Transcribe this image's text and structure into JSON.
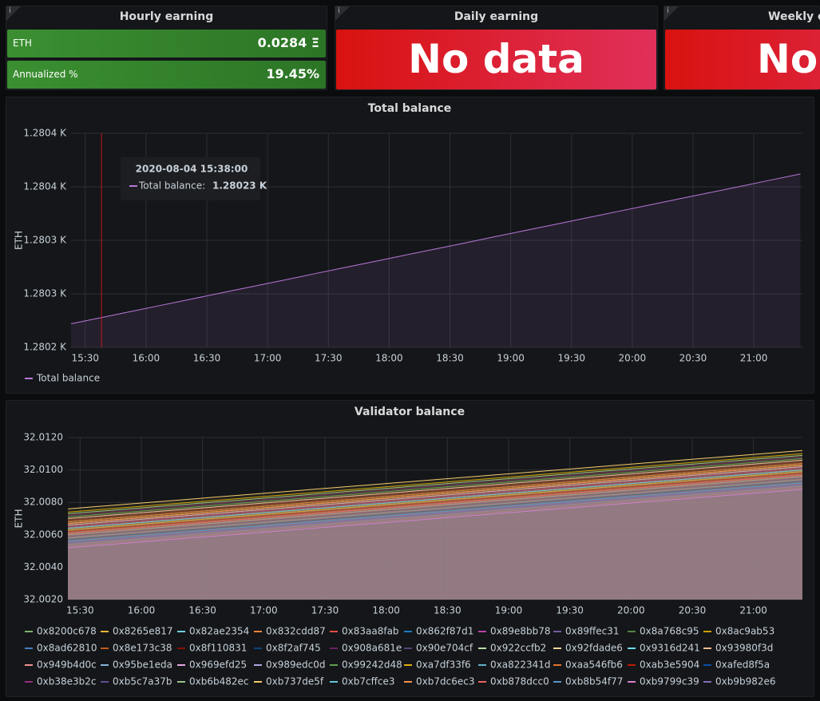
{
  "stat_panels": [
    {
      "title": "Hourly earning",
      "rows": [
        {
          "label": "ETH",
          "value": "0.0284 Ξ"
        },
        {
          "label": "Annualized %",
          "value": "19.45%"
        }
      ]
    },
    {
      "title": "Daily earning",
      "value": "No data"
    },
    {
      "title": "Weekly earning",
      "value": "No data"
    }
  ],
  "chart_data": [
    {
      "type": "line",
      "title": "Total balance",
      "y_label": "ETH",
      "x": [
        "15:23",
        "15:38",
        "15:53",
        "16:08",
        "16:23",
        "16:38",
        "16:53",
        "17:08",
        "17:23",
        "17:38",
        "17:53",
        "18:08",
        "18:23",
        "18:38",
        "18:53",
        "19:08",
        "19:23",
        "19:38",
        "19:53",
        "20:08",
        "20:23",
        "20:38",
        "20:53",
        "21:08",
        "21:23"
      ],
      "series": [
        {
          "name": "Total balance",
          "color": "#b877d9",
          "values": [
            1280.222,
            1280.2278,
            1280.2337,
            1280.2395,
            1280.2453,
            1280.2512,
            1280.257,
            1280.2628,
            1280.2687,
            1280.2745,
            1280.2803,
            1280.2862,
            1280.292,
            1280.2978,
            1280.3037,
            1280.3095,
            1280.3153,
            1280.3212,
            1280.327,
            1280.3328,
            1280.3387,
            1280.3445,
            1280.3503,
            1280.3562,
            1280.362
          ]
        }
      ],
      "xlim": [
        "15:23",
        "21:24"
      ],
      "xticks": [
        "15:30",
        "16:00",
        "16:30",
        "17:00",
        "17:30",
        "18:00",
        "18:30",
        "19:00",
        "19:30",
        "20:00",
        "20:30",
        "21:00"
      ],
      "ylim": [
        1280.2,
        1280.4
      ],
      "yticks": [
        {
          "value": 1280.2,
          "label": "1.2802 K"
        },
        {
          "value": 1280.25,
          "label": "1.2803 K"
        },
        {
          "value": 1280.3,
          "label": "1.2803 K"
        },
        {
          "value": 1280.35,
          "label": "1.2804 K"
        },
        {
          "value": 1280.4,
          "label": "1.2804 K"
        }
      ],
      "grid": true,
      "legend": "bottom-left",
      "tooltip": {
        "time": "2020-08-04 15:38:00",
        "label": "Total balance:",
        "value": "1.28023 K"
      }
    },
    {
      "type": "line",
      "title": "Validator balance",
      "y_label": "ETH",
      "x": [
        "15:24",
        "18:24",
        "21:24"
      ],
      "series": [
        {
          "name": "0x8200c678",
          "color": "#7eb26d",
          "values": [
            32.006,
            32.0078,
            32.0096
          ]
        },
        {
          "name": "0x8265e817",
          "color": "#eab839",
          "values": [
            32.0068,
            32.0086,
            32.0104
          ]
        },
        {
          "name": "0x82ae2354",
          "color": "#6ed0e0",
          "values": [
            32.0063,
            32.0081,
            32.0099
          ]
        },
        {
          "name": "0x832cdd87",
          "color": "#ef843c",
          "values": [
            32.0057,
            32.0075,
            32.0093
          ]
        },
        {
          "name": "0x83aa8fab",
          "color": "#e24d42",
          "values": [
            32.0065,
            32.0083,
            32.0101
          ]
        },
        {
          "name": "0x862f87d1",
          "color": "#1f78c1",
          "values": [
            32.0052,
            32.007,
            32.0088
          ]
        },
        {
          "name": "0x89e8bb78",
          "color": "#ba43a9",
          "values": [
            32.007,
            32.0088,
            32.0106
          ]
        },
        {
          "name": "0x89ffec31",
          "color": "#705da0",
          "values": [
            32.0058,
            32.0076,
            32.0094
          ]
        },
        {
          "name": "0x8a768c95",
          "color": "#508642",
          "values": [
            32.0066,
            32.0084,
            32.0102
          ]
        },
        {
          "name": "0x8ac9ab53",
          "color": "#cca300",
          "values": [
            32.0074,
            32.0092,
            32.011
          ]
        },
        {
          "name": "0x8ad62810",
          "color": "#447ebc",
          "values": [
            32.0055,
            32.0073,
            32.0091
          ]
        },
        {
          "name": "0x8e173c38",
          "color": "#c15c17",
          "values": [
            32.0062,
            32.008,
            32.0098
          ]
        },
        {
          "name": "0x8f110831",
          "color": "#890f02",
          "values": [
            32.0069,
            32.0087,
            32.0105
          ]
        },
        {
          "name": "0x8f2af745",
          "color": "#0a437c",
          "values": [
            32.0059,
            32.0077,
            32.0095
          ]
        },
        {
          "name": "0x908a681e",
          "color": "#6d1f62",
          "values": [
            32.0072,
            32.009,
            32.0108
          ]
        },
        {
          "name": "0x90e704cf",
          "color": "#584477",
          "values": [
            32.0056,
            32.0074,
            32.0092
          ]
        },
        {
          "name": "0x922ccfb2",
          "color": "#b7dbab",
          "values": [
            32.0064,
            32.0082,
            32.01
          ]
        },
        {
          "name": "0x92fdade6",
          "color": "#f4d598",
          "values": [
            32.0067,
            32.0085,
            32.0103
          ]
        },
        {
          "name": "0x9316d241",
          "color": "#70dbed",
          "values": [
            32.0061,
            32.0079,
            32.0097
          ]
        },
        {
          "name": "0x93980f3d",
          "color": "#f9ba8f",
          "values": [
            32.007,
            32.0088,
            32.0106
          ]
        },
        {
          "name": "0x949b4d0c",
          "color": "#f29191",
          "values": [
            32.0053,
            32.0071,
            32.0089
          ]
        },
        {
          "name": "0x95be1eda",
          "color": "#82b5d8",
          "values": [
            32.006,
            32.0078,
            32.0096
          ]
        },
        {
          "name": "0x969efd25",
          "color": "#e5a8e2",
          "values": [
            32.0066,
            32.0084,
            32.0102
          ]
        },
        {
          "name": "0x989edc0d",
          "color": "#aea2e0",
          "values": [
            32.0054,
            32.0072,
            32.009
          ]
        },
        {
          "name": "0x99242d48",
          "color": "#629e51",
          "values": [
            32.0071,
            32.0089,
            32.0107
          ]
        },
        {
          "name": "0xa7df33f6",
          "color": "#e5ac0e",
          "values": [
            32.0063,
            32.0081,
            32.0099
          ]
        },
        {
          "name": "0xa822341d",
          "color": "#64b0c8",
          "values": [
            32.0058,
            32.0076,
            32.0094
          ]
        },
        {
          "name": "0xaa546fb6",
          "color": "#e0752d",
          "values": [
            32.0068,
            32.0086,
            32.0104
          ]
        },
        {
          "name": "0xab3e5904",
          "color": "#bf1b00",
          "values": [
            32.0062,
            32.008,
            32.0098
          ]
        },
        {
          "name": "0xafed8f5a",
          "color": "#0a50a1",
          "values": [
            32.0057,
            32.0075,
            32.0093
          ]
        },
        {
          "name": "0xb38e3b2c",
          "color": "#962d82",
          "values": [
            32.0065,
            32.0083,
            32.0101
          ]
        },
        {
          "name": "0xb5c7a37b",
          "color": "#614d93",
          "values": [
            32.0059,
            32.0077,
            32.0095
          ]
        },
        {
          "name": "0xb6b482ec",
          "color": "#9ac48a",
          "values": [
            32.0073,
            32.0091,
            32.0109
          ]
        },
        {
          "name": "0xb737de5f",
          "color": "#f2c96d",
          "values": [
            32.0076,
            32.0094,
            32.0112
          ]
        },
        {
          "name": "0xb7cffce3",
          "color": "#65c5db",
          "values": [
            32.0064,
            32.0082,
            32.01
          ]
        },
        {
          "name": "0xb7dc6ec3",
          "color": "#f9934e",
          "values": [
            32.0067,
            32.0085,
            32.0103
          ]
        },
        {
          "name": "0xb878dcc0",
          "color": "#ea6460",
          "values": [
            32.0061,
            32.0079,
            32.0097
          ]
        },
        {
          "name": "0xb8b54f77",
          "color": "#5195ce",
          "values": [
            32.0056,
            32.0074,
            32.0092
          ]
        },
        {
          "name": "0xb9799c39",
          "color": "#d683ce",
          "values": [
            32.0052,
            32.007,
            32.0088
          ]
        },
        {
          "name": "0xb9b982e6",
          "color": "#806eb7",
          "values": [
            32.0055,
            32.0073,
            32.0091
          ]
        }
      ],
      "xlim": [
        "15:24",
        "21:24"
      ],
      "xticks": [
        "15:30",
        "16:00",
        "16:30",
        "17:00",
        "17:30",
        "18:00",
        "18:30",
        "19:00",
        "19:30",
        "20:00",
        "20:30",
        "21:00"
      ],
      "ylim": [
        32.002,
        32.012
      ],
      "yticks": [
        {
          "value": 32.002,
          "label": "32.0020"
        },
        {
          "value": 32.004,
          "label": "32.0040"
        },
        {
          "value": 32.006,
          "label": "32.0060"
        },
        {
          "value": 32.008,
          "label": "32.0080"
        },
        {
          "value": 32.01,
          "label": "32.0100"
        },
        {
          "value": 32.012,
          "label": "32.0120"
        }
      ],
      "grid": true,
      "legend": "bottom-left"
    }
  ]
}
